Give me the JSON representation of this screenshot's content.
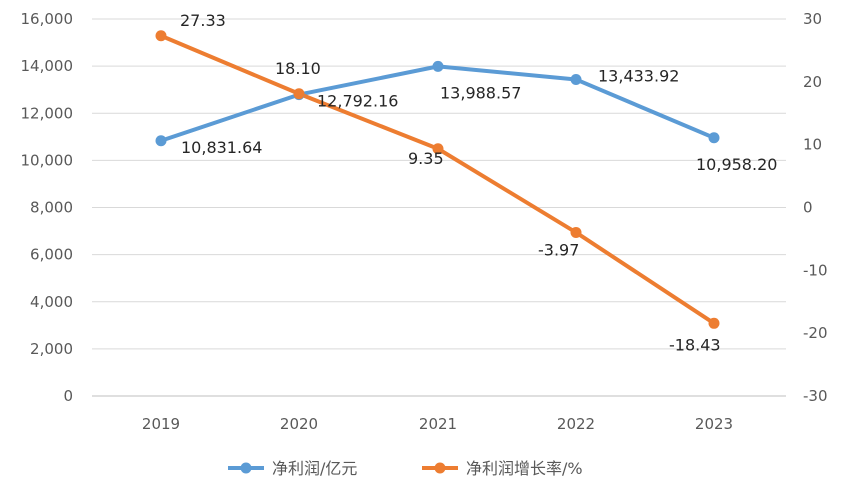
{
  "chart_data": {
    "type": "line",
    "categories": [
      "2019",
      "2020",
      "2021",
      "2022",
      "2023"
    ],
    "title": "",
    "grid": true,
    "legend_position": "bottom",
    "y_left": {
      "min": 0,
      "max": 16000,
      "step": 2000,
      "tick_labels": [
        "0",
        "2,000",
        "4,000",
        "6,000",
        "8,000",
        "10,000",
        "12,000",
        "14,000",
        "16,000"
      ]
    },
    "y_right": {
      "min": -30,
      "max": 30,
      "step": 10,
      "tick_labels": [
        "-30",
        "-20",
        "-10",
        "0",
        "10",
        "20",
        "30"
      ]
    },
    "series": [
      {
        "name": "净利润/亿元",
        "axis": "left",
        "color": "#5B9BD5",
        "values": [
          10831.64,
          12792.16,
          13988.57,
          13433.92,
          10958.2
        ],
        "labels": [
          "10,831.64",
          "12,792.16",
          "13,988.57",
          "13,433.92",
          "10,958.20"
        ]
      },
      {
        "name": "净利润增长率/%",
        "axis": "right",
        "color": "#ED7D31",
        "values": [
          27.33,
          18.1,
          9.35,
          -3.97,
          -18.43
        ],
        "labels": [
          "27.33",
          "18.10",
          "9.35",
          "-3.97",
          "-18.43"
        ]
      }
    ]
  }
}
